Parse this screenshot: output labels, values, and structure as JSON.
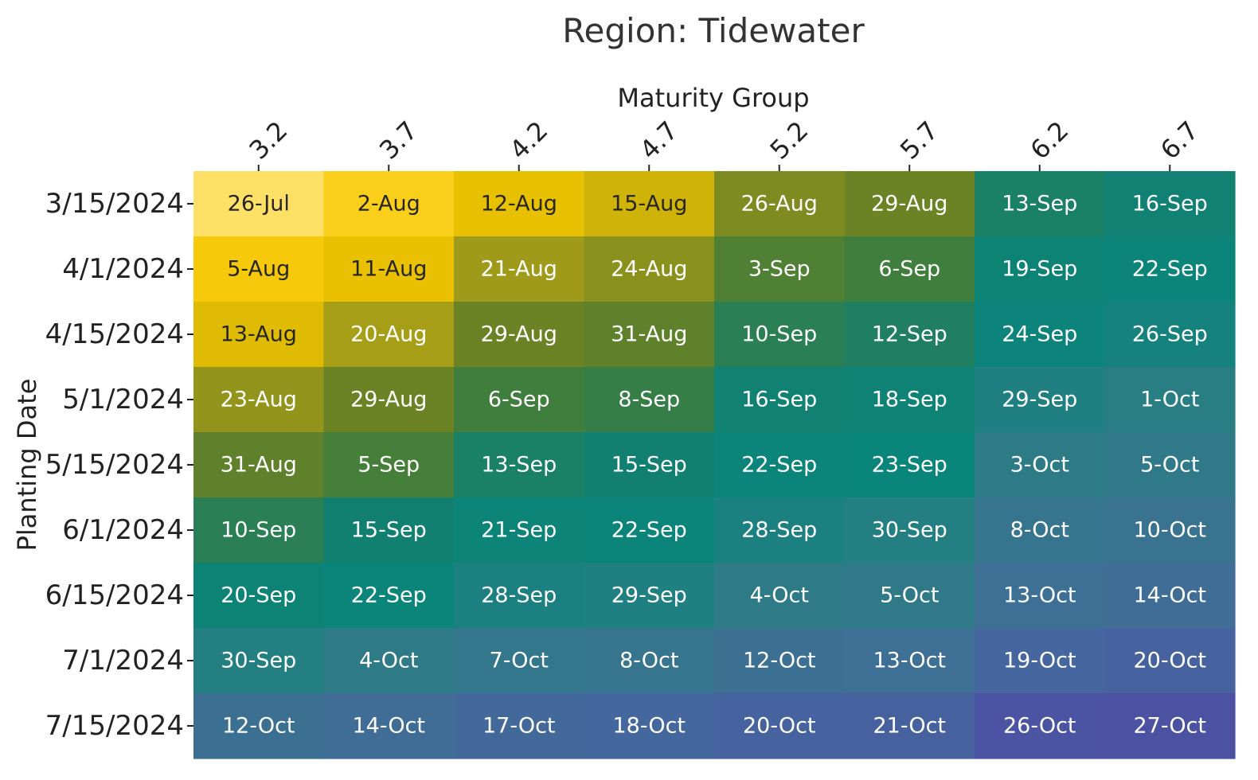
{
  "chart_data": {
    "type": "heatmap",
    "title": "Region: Tidewater",
    "xlabel": "Maturity Group",
    "ylabel": "Planting Date",
    "x_position": "top",
    "columns": [
      "3.2",
      "3.7",
      "4.2",
      "4.7",
      "5.2",
      "5.7",
      "6.2",
      "6.7"
    ],
    "rows": [
      "3/15/2024",
      "4/1/2024",
      "4/15/2024",
      "5/1/2024",
      "5/15/2024",
      "6/1/2024",
      "6/15/2024",
      "7/1/2024",
      "7/15/2024"
    ],
    "cell_labels": [
      [
        "26-Jul",
        "2-Aug",
        "12-Aug",
        "15-Aug",
        "26-Aug",
        "29-Aug",
        "13-Sep",
        "16-Sep"
      ],
      [
        "5-Aug",
        "11-Aug",
        "21-Aug",
        "24-Aug",
        "3-Sep",
        "6-Sep",
        "19-Sep",
        "22-Sep"
      ],
      [
        "13-Aug",
        "20-Aug",
        "29-Aug",
        "31-Aug",
        "10-Sep",
        "12-Sep",
        "24-Sep",
        "26-Sep"
      ],
      [
        "23-Aug",
        "29-Aug",
        "6-Sep",
        "8-Sep",
        "16-Sep",
        "18-Sep",
        "29-Sep",
        "1-Oct"
      ],
      [
        "31-Aug",
        "5-Sep",
        "13-Sep",
        "15-Sep",
        "22-Sep",
        "23-Sep",
        "3-Oct",
        "5-Oct"
      ],
      [
        "10-Sep",
        "15-Sep",
        "21-Sep",
        "22-Sep",
        "28-Sep",
        "30-Sep",
        "8-Oct",
        "10-Oct"
      ],
      [
        "20-Sep",
        "22-Sep",
        "28-Sep",
        "29-Sep",
        "4-Oct",
        "5-Oct",
        "13-Oct",
        "14-Oct"
      ],
      [
        "30-Sep",
        "4-Oct",
        "7-Oct",
        "8-Oct",
        "12-Oct",
        "13-Oct",
        "19-Oct",
        "20-Oct"
      ],
      [
        "12-Oct",
        "14-Oct",
        "17-Oct",
        "18-Oct",
        "20-Oct",
        "21-Oct",
        "26-Oct",
        "27-Oct"
      ]
    ],
    "colormap": [
      "#ffe066",
      "#f9cb0c",
      "#e8c000",
      "#a39c18",
      "#6c8224",
      "#3f7e3e",
      "#118070",
      "#0a857a",
      "#2a7d84",
      "#3a7390",
      "#45679e",
      "#4c52a2"
    ],
    "colorbar": false,
    "grid": false
  }
}
